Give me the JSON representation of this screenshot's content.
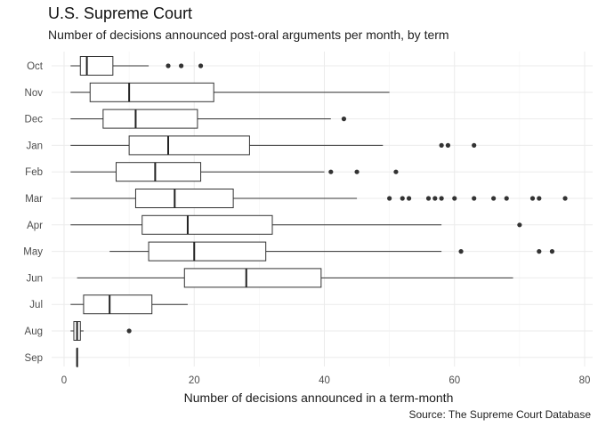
{
  "header": {
    "title": "U.S. Supreme Court",
    "subtitle": "Number of decisions announced post-oral arguments per month, by term",
    "caption": "Source: The Supreme Court Database"
  },
  "chart_data": {
    "type": "boxplot",
    "orientation": "horizontal",
    "title": "U.S. Supreme Court",
    "subtitle": "Number of decisions announced post-oral arguments per month, by term",
    "xlabel": "Number of decisions announced in a term-month",
    "ylabel": "",
    "xlim": [
      -2,
      81
    ],
    "xticks": [
      0,
      20,
      40,
      60,
      80
    ],
    "grid": true,
    "categories": [
      "Oct",
      "Nov",
      "Dec",
      "Jan",
      "Feb",
      "Mar",
      "Apr",
      "May",
      "Jun",
      "Jul",
      "Aug",
      "Sep"
    ],
    "boxes": [
      {
        "label": "Oct",
        "min": 1,
        "q1": 2.5,
        "median": 3.5,
        "q3": 7.5,
        "max": 13,
        "outliers": [
          16,
          18,
          21
        ]
      },
      {
        "label": "Nov",
        "min": 1,
        "q1": 4,
        "median": 10,
        "q3": 23,
        "max": 50,
        "outliers": []
      },
      {
        "label": "Dec",
        "min": 1,
        "q1": 6,
        "median": 11,
        "q3": 20.5,
        "max": 41,
        "outliers": [
          43
        ]
      },
      {
        "label": "Jan",
        "min": 1,
        "q1": 10,
        "median": 16,
        "q3": 28.5,
        "max": 49,
        "outliers": [
          58,
          59,
          63
        ]
      },
      {
        "label": "Feb",
        "min": 1,
        "q1": 8,
        "median": 14,
        "q3": 21,
        "max": 40,
        "outliers": [
          41,
          45,
          51
        ]
      },
      {
        "label": "Mar",
        "min": 1,
        "q1": 11,
        "median": 17,
        "q3": 26,
        "max": 45,
        "outliers": [
          50,
          52,
          53,
          56,
          57,
          58,
          60,
          63,
          66,
          68,
          72,
          73,
          77
        ]
      },
      {
        "label": "Apr",
        "min": 1,
        "q1": 12,
        "median": 19,
        "q3": 32,
        "max": 58,
        "outliers": [
          70
        ]
      },
      {
        "label": "May",
        "min": 7,
        "q1": 13,
        "median": 20,
        "q3": 31,
        "max": 58,
        "outliers": [
          61,
          73,
          75
        ]
      },
      {
        "label": "Jun",
        "min": 2,
        "q1": 18.5,
        "median": 28,
        "q3": 39.5,
        "max": 69,
        "outliers": []
      },
      {
        "label": "Jul",
        "min": 1,
        "q1": 3,
        "median": 7,
        "q3": 13.5,
        "max": 19,
        "outliers": []
      },
      {
        "label": "Aug",
        "min": 1,
        "q1": 1.5,
        "median": 2,
        "q3": 2.5,
        "max": 3,
        "outliers": [
          10
        ]
      },
      {
        "label": "Sep",
        "min": 2,
        "q1": 2,
        "median": 2,
        "q3": 2,
        "max": 2,
        "outliers": []
      }
    ]
  }
}
